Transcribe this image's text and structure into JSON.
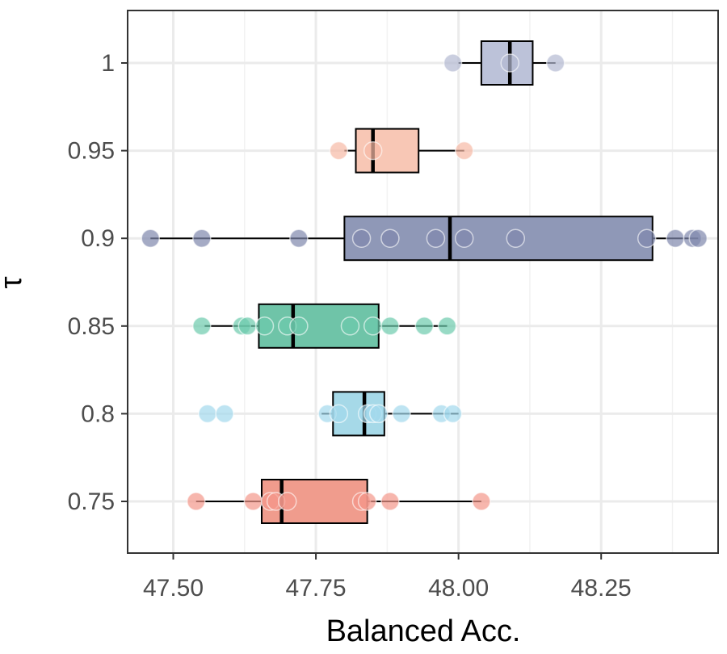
{
  "chart_data": {
    "type": "boxplot-horizontal",
    "title": "",
    "xlabel": "Balanced Acc.",
    "ylabel": "τ",
    "xlim": [
      47.42,
      48.455
    ],
    "x_ticks": [
      47.5,
      47.75,
      48.0,
      48.25
    ],
    "x_tick_labels": [
      "47.50",
      "47.75",
      "48.00",
      "48.25"
    ],
    "categories": [
      "1",
      "0.95",
      "0.9",
      "0.85",
      "0.8",
      "0.75"
    ],
    "grid": true,
    "legend": "none",
    "series": [
      {
        "name": "1",
        "color": "#b3b9d2",
        "box_color": "#bcc2d9",
        "min": 48.0,
        "q1": 48.04,
        "median": 48.09,
        "q3": 48.13,
        "max": 48.17,
        "points": [
          47.99,
          48.09,
          48.17
        ]
      },
      {
        "name": "0.95",
        "color": "#f7b9a5",
        "box_color": "#f8c7b5",
        "min": 47.8,
        "q1": 47.82,
        "median": 47.85,
        "q3": 47.93,
        "max": 48.01,
        "points": [
          47.79,
          47.85,
          48.01
        ]
      },
      {
        "name": "0.9",
        "color": "#7f88ad",
        "box_color": "#8f98b7",
        "min": 47.46,
        "q1": 47.8,
        "median": 47.985,
        "q3": 48.34,
        "max": 48.42,
        "points": [
          47.46,
          47.55,
          47.72,
          47.83,
          47.88,
          47.96,
          48.01,
          48.1,
          48.33,
          48.38,
          48.41,
          48.42
        ]
      },
      {
        "name": "0.85",
        "color": "#6ccbac",
        "box_color": "#6fc4a8",
        "min": 47.555,
        "q1": 47.65,
        "median": 47.71,
        "q3": 47.86,
        "max": 47.98,
        "points": [
          47.55,
          47.62,
          47.63,
          47.66,
          47.7,
          47.72,
          47.81,
          47.85,
          47.88,
          47.94,
          47.98
        ]
      },
      {
        "name": "0.8",
        "color": "#a3d8ec",
        "box_color": "#a6d9e8",
        "min": 47.76,
        "q1": 47.78,
        "median": 47.835,
        "q3": 47.87,
        "max": 48.0,
        "points": [
          47.56,
          47.59,
          47.77,
          47.79,
          47.84,
          47.85,
          47.86,
          47.9,
          47.97,
          47.99
        ]
      },
      {
        "name": "0.75",
        "color": "#f3978a",
        "box_color": "#f09c8d",
        "min": 47.54,
        "q1": 47.655,
        "median": 47.69,
        "q3": 47.84,
        "max": 48.04,
        "points": [
          47.54,
          47.64,
          47.67,
          47.68,
          47.7,
          47.83,
          47.84,
          47.88,
          48.04
        ]
      }
    ]
  }
}
